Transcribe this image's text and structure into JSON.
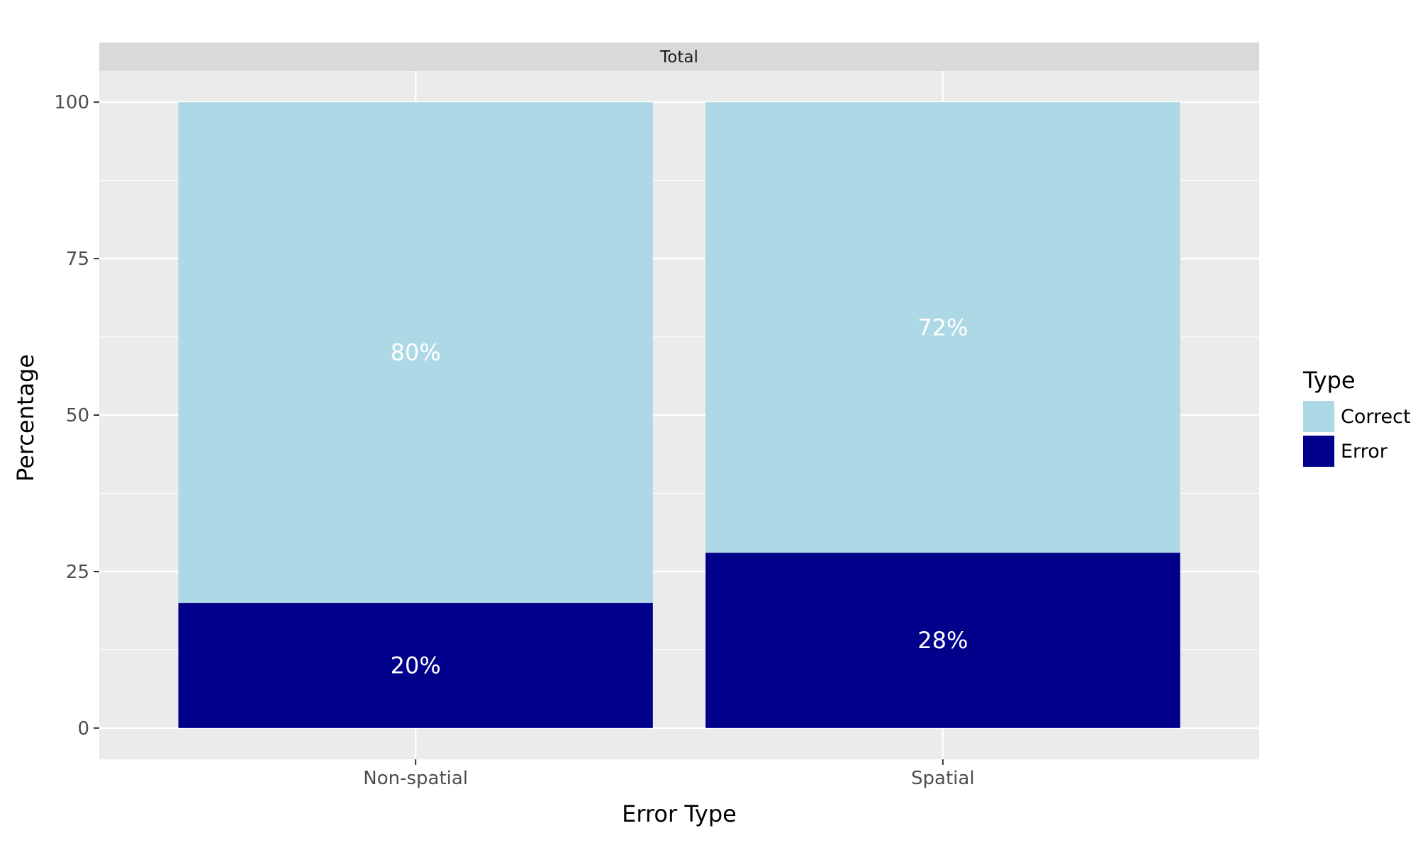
{
  "chart_data": {
    "type": "bar",
    "stacked": true,
    "facet": "Total",
    "categories": [
      "Non-spatial",
      "Spatial"
    ],
    "series": [
      {
        "name": "Error",
        "values": [
          20,
          28
        ],
        "labels": [
          "20%",
          "28%"
        ],
        "color": "#00008B"
      },
      {
        "name": "Correct",
        "values": [
          80,
          72
        ],
        "labels": [
          "80%",
          "72%"
        ],
        "color": "#ADD8E6"
      }
    ],
    "xlabel": "Error Type",
    "ylabel": "Percentage",
    "ylim": [
      -5,
      105
    ],
    "yticks": [
      0,
      25,
      50,
      75,
      100
    ],
    "grid": true,
    "legend": {
      "title": "Type",
      "placement": "right",
      "entries": [
        {
          "label": "Correct",
          "color": "#ADD8E6"
        },
        {
          "label": "Error",
          "color": "#00008B"
        }
      ]
    },
    "colors": {
      "panel_bg": "#EBEBEB",
      "strip_bg": "#D9D9D9",
      "grid": "#FFFFFF"
    }
  }
}
